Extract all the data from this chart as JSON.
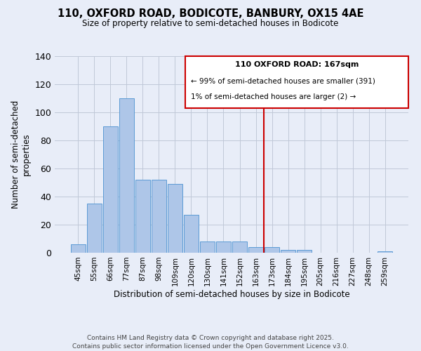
{
  "title": "110, OXFORD ROAD, BODICOTE, BANBURY, OX15 4AE",
  "subtitle": "Size of property relative to semi-detached houses in Bodicote",
  "xlabel": "Distribution of semi-detached houses by size in Bodicote",
  "ylabel": "Number of semi-detached\nproperties",
  "categories": [
    "45sqm",
    "55sqm",
    "66sqm",
    "77sqm",
    "87sqm",
    "98sqm",
    "109sqm",
    "120sqm",
    "130sqm",
    "141sqm",
    "152sqm",
    "163sqm",
    "173sqm",
    "184sqm",
    "195sqm",
    "205sqm",
    "216sqm",
    "227sqm",
    "248sqm",
    "259sqm"
  ],
  "values": [
    6,
    35,
    90,
    110,
    52,
    52,
    49,
    27,
    8,
    8,
    8,
    4,
    4,
    2,
    2,
    0,
    0,
    0,
    0,
    1
  ],
  "bar_color": "#aec6e8",
  "bar_edge_color": "#5b9bd5",
  "bg_color": "#e8edf8",
  "grid_color": "#c0c8d8",
  "vline_x": 12,
  "vline_color": "#cc0000",
  "legend_title": "110 OXFORD ROAD: 167sqm",
  "legend_line1": "← 99% of semi-detached houses are smaller (391)",
  "legend_line2": "1% of semi-detached houses are larger (2) →",
  "legend_box_color": "#cc0000",
  "footnote1": "Contains HM Land Registry data © Crown copyright and database right 2025.",
  "footnote2": "Contains public sector information licensed under the Open Government Licence v3.0.",
  "ylim": [
    0,
    140
  ],
  "yticks": [
    0,
    20,
    40,
    60,
    80,
    100,
    120,
    140
  ]
}
